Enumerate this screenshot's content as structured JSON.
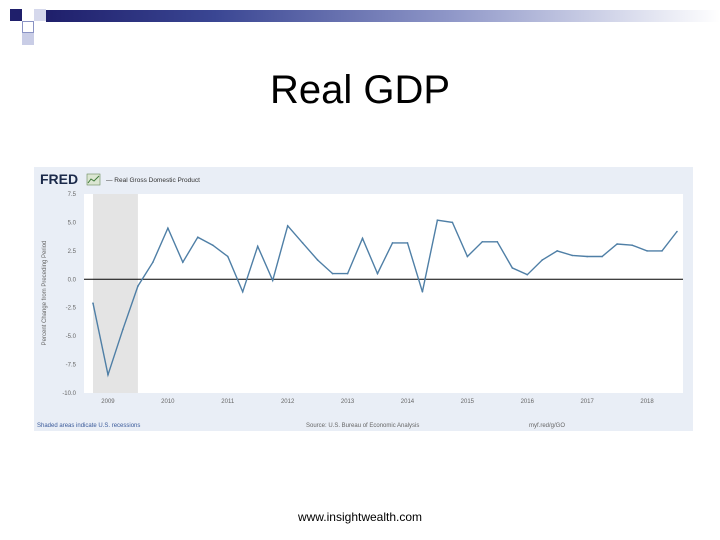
{
  "slide": {
    "title": "Real GDP",
    "footer": "www.insightwealth.com"
  },
  "colors": {
    "band_dark": "#1f1f6b",
    "band_blue": "#4a58a8",
    "line": "#4f7fa6",
    "recession": "#e4e4e4",
    "chart_bg": "#e9eef6"
  },
  "fred": {
    "logo": "FRED",
    "legend_label": "— Real Gross Domestic Product",
    "recession_note": "Shaded areas indicate U.S. recessions",
    "source_note": "Source: U.S. Bureau of Economic Analysis",
    "link": "myf.red/g/GO"
  },
  "chart_data": {
    "type": "line",
    "title": "",
    "xlabel": "",
    "ylabel": "Percent Change from Preceding Period",
    "series": [
      {
        "name": "Real Gross Domestic Product",
        "x": [
          2008.75,
          2009.0,
          2009.25,
          2009.5,
          2009.75,
          2010.0,
          2010.25,
          2010.5,
          2010.75,
          2011.0,
          2011.25,
          2011.5,
          2011.75,
          2012.0,
          2012.25,
          2012.5,
          2012.75,
          2013.0,
          2013.25,
          2013.5,
          2013.75,
          2014.0,
          2014.25,
          2014.5,
          2014.75,
          2015.0,
          2015.25,
          2015.5,
          2015.75,
          2016.0,
          2016.25,
          2016.5,
          2016.75,
          2017.0,
          2017.25,
          2017.5,
          2017.75,
          2018.0,
          2018.25,
          2018.5
        ],
        "values": [
          -2.1,
          -8.4,
          -4.4,
          -0.6,
          1.5,
          4.5,
          1.5,
          3.7,
          3.0,
          2.0,
          -1.1,
          2.9,
          -0.1,
          4.7,
          3.2,
          1.7,
          0.5,
          0.5,
          3.6,
          0.5,
          3.2,
          3.2,
          -1.1,
          5.2,
          5.0,
          2.0,
          3.3,
          3.3,
          1.0,
          0.4,
          1.7,
          2.5,
          2.1,
          2.0,
          2.0,
          3.1,
          3.0,
          2.5,
          2.5,
          4.2
        ]
      }
    ],
    "x_ticks": [
      "2009",
      "2010",
      "2011",
      "2012",
      "2013",
      "2014",
      "2015",
      "2016",
      "2017",
      "2018"
    ],
    "y_ticks": [
      "7.5",
      "5.0",
      "2.5",
      "0.0",
      "-2.5",
      "-5.0",
      "-7.5",
      "-10.0"
    ],
    "ylim": [
      -10,
      7.5
    ],
    "recession": [
      2008.75,
      2009.5
    ],
    "grid": false,
    "zero_line": true
  }
}
